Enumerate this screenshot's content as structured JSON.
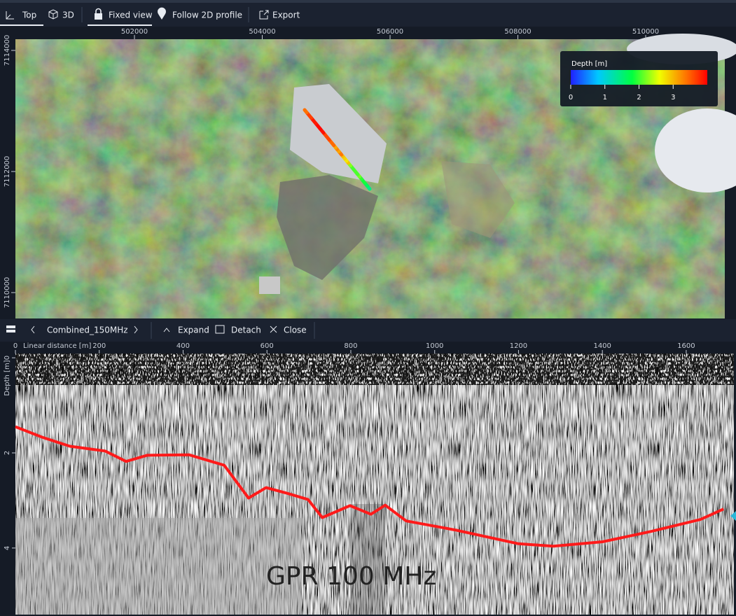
{
  "toolbar": {
    "items": [
      "Top",
      "3D",
      "Fixed view",
      "Follow 2D profile",
      "Export"
    ]
  },
  "map": {
    "xticks": [
      502000,
      504000,
      506000,
      508000,
      510000
    ],
    "xlim": [
      500137,
      511238
    ],
    "yticks": [
      7114000,
      7112000,
      7110000
    ],
    "ylim": [
      7109572,
      7114185
    ],
    "legend": {
      "title": "Depth [m]",
      "ticks": [
        0,
        1,
        2,
        3
      ],
      "lim": [
        0,
        4
      ]
    }
  },
  "profile_toolbar": {
    "name": "Combined_150MHz",
    "actions": [
      "Expand",
      "Detach",
      "Close"
    ]
  },
  "profile": {
    "xlabel": "Linear distance [m]",
    "ylabel": "Depth [m]",
    "xticks": [
      0,
      200,
      400,
      600,
      800,
      1000,
      1200,
      1400,
      1600
    ],
    "xlim": [
      0,
      1692
    ],
    "yticks": [
      0,
      2,
      4
    ],
    "ylim": [
      -0.09,
      5.4
    ],
    "line": {
      "color": "#ff1a1a",
      "x": [
        0,
        64,
        130,
        214,
        264,
        314,
        414,
        498,
        556,
        598,
        648,
        698,
        732,
        798,
        848,
        882,
        932,
        1049,
        1200,
        1283,
        1400,
        1517,
        1634,
        1689
      ],
      "values": [
        1.45,
        1.67,
        1.86,
        1.96,
        2.18,
        2.05,
        2.04,
        2.26,
        2.95,
        2.73,
        2.85,
        2.98,
        3.36,
        3.11,
        3.29,
        3.1,
        3.43,
        3.62,
        3.91,
        3.96,
        3.87,
        3.65,
        3.4,
        3.18
      ]
    },
    "annotation": "GPR 100 MHz"
  }
}
